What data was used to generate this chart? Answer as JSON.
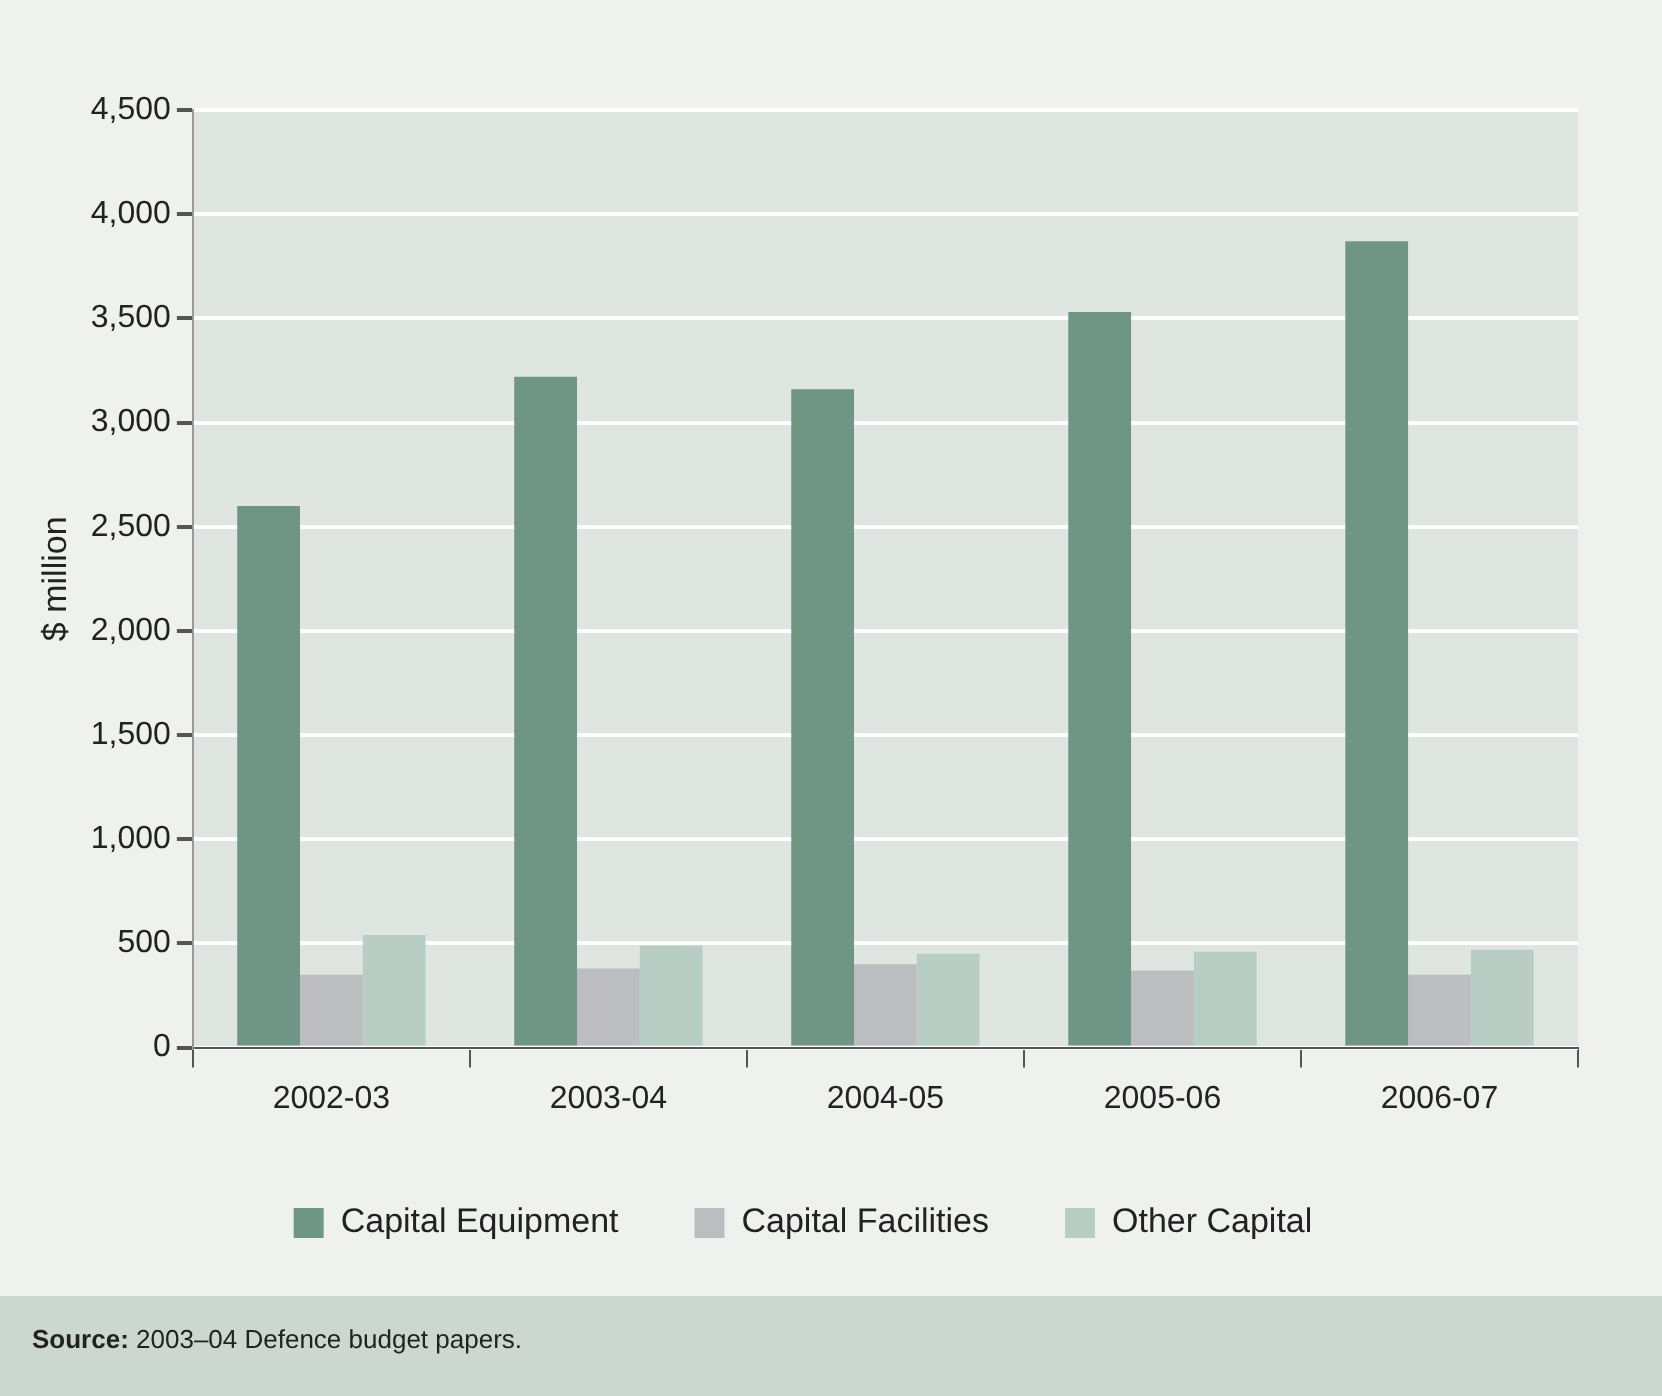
{
  "chart_data": {
    "type": "bar",
    "ylabel": "$ million",
    "categories": [
      "2002-03",
      "2003-04",
      "2004-05",
      "2005-06",
      "2006-07"
    ],
    "series": [
      {
        "name": "Capital Equipment",
        "color": "#6f9685",
        "values": [
          2600,
          3220,
          3160,
          3530,
          3870
        ]
      },
      {
        "name": "Capital Facilities",
        "color": "#bcbdc1",
        "values": [
          350,
          380,
          400,
          370,
          350
        ]
      },
      {
        "name": "Other Capital",
        "color": "#b8cdc3",
        "values": [
          540,
          490,
          450,
          460,
          470
        ]
      }
    ],
    "ylim": [
      0,
      4500
    ],
    "yticks": [
      {
        "value": 0,
        "label": "0"
      },
      {
        "value": 500,
        "label": "500"
      },
      {
        "value": 1000,
        "label": "1,000"
      },
      {
        "value": 1500,
        "label": "1,500"
      },
      {
        "value": 2000,
        "label": "2,000"
      },
      {
        "value": 2500,
        "label": "2,500"
      },
      {
        "value": 3000,
        "label": "3,000"
      },
      {
        "value": 3500,
        "label": "3,500"
      },
      {
        "value": 4000,
        "label": "4,000"
      },
      {
        "value": 4500,
        "label": "4,500"
      }
    ],
    "grid": "y",
    "legend": "bottom",
    "annotations": [
      "Source: 2003–04 Defence budget papers."
    ]
  }
}
